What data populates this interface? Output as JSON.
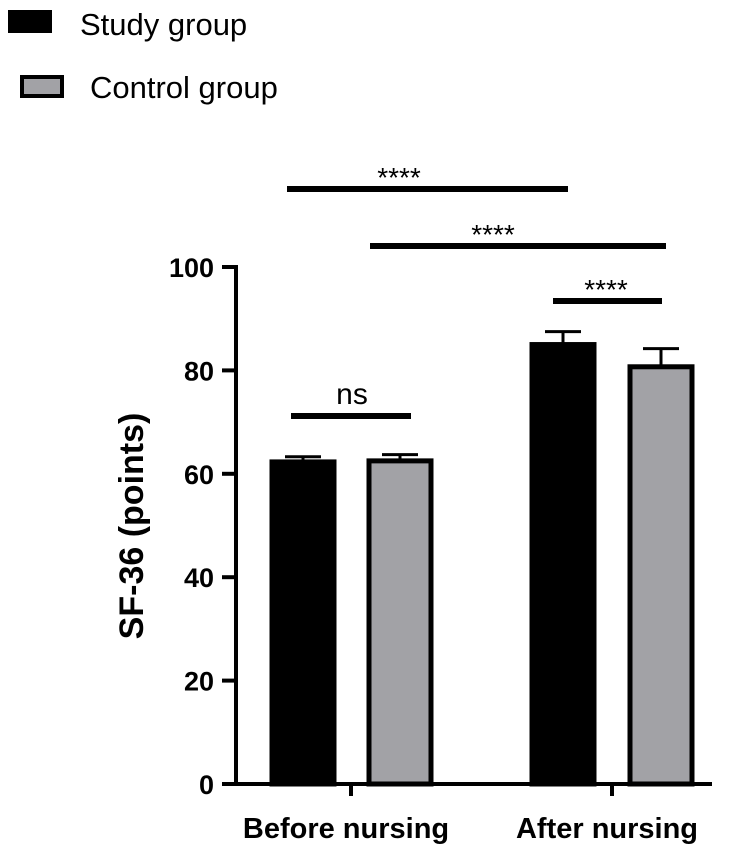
{
  "chart_data": {
    "type": "bar",
    "title": "",
    "xlabel": "",
    "ylabel": "SF-36 (points)",
    "ylim": [
      0,
      100
    ],
    "yticks": [
      0,
      20,
      40,
      60,
      80,
      100
    ],
    "categories": [
      "Before nursing",
      "After nursing"
    ],
    "series": [
      {
        "name": "Study group",
        "color": "#000000",
        "values": [
          62.3,
          85.0
        ],
        "errors": [
          1.0,
          2.5
        ]
      },
      {
        "name": "Control group",
        "color": "#a2a2a6",
        "values": [
          62.5,
          80.7
        ],
        "errors": [
          1.2,
          3.5
        ]
      }
    ],
    "legend": {
      "placement": "top-left",
      "entries": [
        "Study group",
        "Control group"
      ]
    },
    "significance": [
      {
        "label": "ns",
        "from": {
          "category": 0,
          "series": 0
        },
        "to": {
          "category": 0,
          "series": 1
        }
      },
      {
        "label": "****",
        "from": {
          "category": 1,
          "series": 0
        },
        "to": {
          "category": 1,
          "series": 1
        }
      },
      {
        "label": "****",
        "from": {
          "category": 0,
          "series": 0
        },
        "to": {
          "category": 1,
          "series": 0
        }
      },
      {
        "label": "****",
        "from": {
          "category": 0,
          "series": 1
        },
        "to": {
          "category": 1,
          "series": 1
        }
      }
    ]
  }
}
